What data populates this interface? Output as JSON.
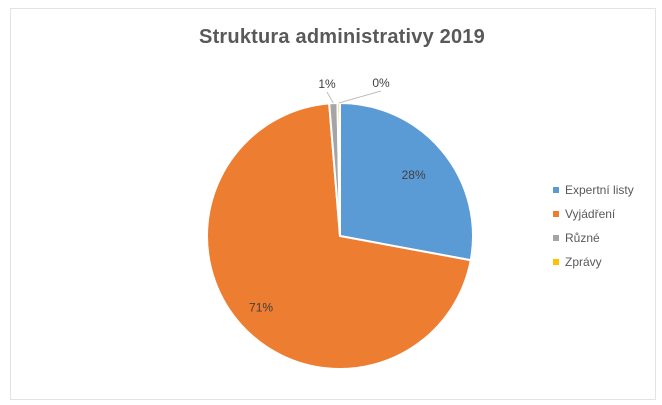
{
  "chart_data": {
    "type": "pie",
    "title": "Struktura administrativy 2019",
    "slices": [
      {
        "name": "Expertní listy",
        "value": 28,
        "label": "28%",
        "color": "#5b9bd5"
      },
      {
        "name": "Vyjádření",
        "value": 71,
        "label": "71%",
        "color": "#ed7d31"
      },
      {
        "name": "Různé",
        "value": 1,
        "label": "1%",
        "color": "#a5a5a5"
      },
      {
        "name": "Zprávy",
        "value": 0.3,
        "label": "0%",
        "color": "#ffc000"
      }
    ],
    "legend_position": "right"
  }
}
